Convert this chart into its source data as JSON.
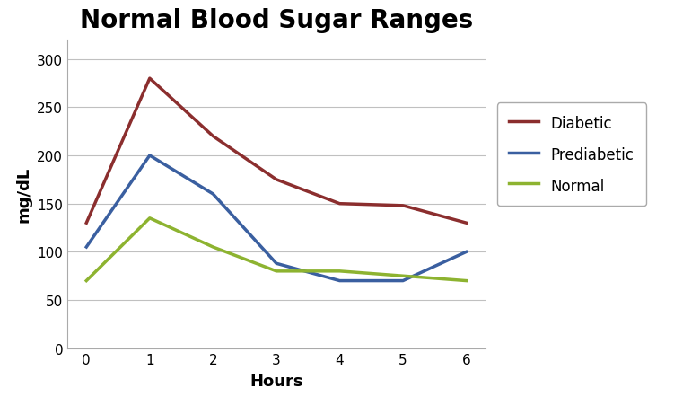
{
  "title": "Normal Blood Sugar Ranges",
  "xlabel": "Hours",
  "ylabel": "mg/dL",
  "hours": [
    0,
    1,
    2,
    3,
    4,
    5,
    6
  ],
  "diabetic": [
    130,
    280,
    220,
    175,
    150,
    148,
    130
  ],
  "prediabetic": [
    105,
    200,
    160,
    88,
    70,
    70,
    100
  ],
  "normal": [
    70,
    135,
    105,
    80,
    80,
    75,
    70
  ],
  "diabetic_color": "#8B2E2E",
  "prediabetic_color": "#3A5FA0",
  "normal_color": "#8DB330",
  "line_width": 2.5,
  "ylim": [
    0,
    320
  ],
  "yticks": [
    0,
    50,
    100,
    150,
    200,
    250,
    300
  ],
  "xlim": [
    -0.3,
    6.3
  ],
  "title_fontsize": 20,
  "title_fontweight": "bold",
  "label_fontsize": 13,
  "tick_fontsize": 11,
  "legend_fontsize": 12,
  "background_color": "#ffffff",
  "grid_color": "#c0c0c0",
  "legend_labels": [
    "Diabetic",
    "Prediabetic",
    "Normal"
  ]
}
